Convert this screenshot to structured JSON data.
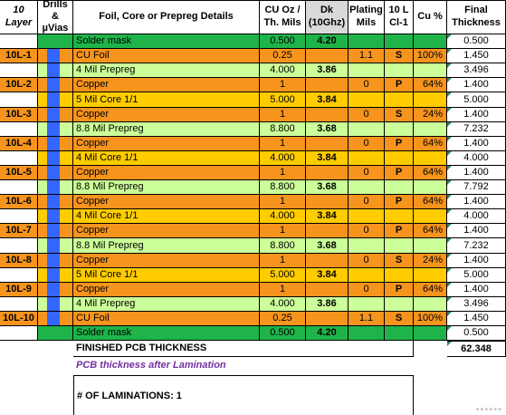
{
  "colors": {
    "solder": "#1fb44a",
    "copper": "#f7941d",
    "prepreg": "#ccff99",
    "core": "#ffcc00",
    "via": "#3366ff",
    "header": "#d9d9d9"
  },
  "headers": {
    "layer": "10 Layer",
    "drills": "Drills & µVias",
    "details": "Foil, Core or Prepreg Details",
    "cu": "CU Oz / Th. Mils",
    "dk_top": "Dk",
    "dk_bottom": "(10Ghz)",
    "plating": "Plating Mils",
    "cl": "10 L Cl-1",
    "cu_pct": "Cu %",
    "final": "Final Thickness"
  },
  "rows": [
    {
      "layer": "",
      "type": "solder",
      "detail": "Solder mask",
      "cu": "0.500",
      "dk": "4.20",
      "plating": "",
      "cl": "",
      "pct": "",
      "final": "0.500"
    },
    {
      "layer": "10L-1",
      "type": "copper",
      "detail": "CU Foil",
      "cu": "0.25",
      "dk": "",
      "plating": "1.1",
      "cl": "S",
      "pct": "100%",
      "final": "1.450"
    },
    {
      "layer": "",
      "type": "prepreg",
      "detail": "4 Mil Prepreg",
      "cu": "4.000",
      "dk": "3.86",
      "plating": "",
      "cl": "",
      "pct": "",
      "final": "3.496"
    },
    {
      "layer": "10L-2",
      "type": "copper",
      "detail": "Copper",
      "cu": "1",
      "dk": "",
      "plating": "0",
      "cl": "P",
      "pct": "64%",
      "final": "1.400"
    },
    {
      "layer": "",
      "type": "core",
      "detail": "5 Mil Core 1/1",
      "cu": "5.000",
      "dk": "3.84",
      "plating": "",
      "cl": "",
      "pct": "",
      "final": "5.000"
    },
    {
      "layer": "10L-3",
      "type": "copper",
      "detail": "Copper",
      "cu": "1",
      "dk": "",
      "plating": "0",
      "cl": "S",
      "pct": "24%",
      "final": "1.400"
    },
    {
      "layer": "",
      "type": "prepreg",
      "detail": "8.8 Mil Prepreg",
      "cu": "8.800",
      "dk": "3.68",
      "plating": "",
      "cl": "",
      "pct": "",
      "final": "7.232"
    },
    {
      "layer": "10L-4",
      "type": "copper",
      "detail": "Copper",
      "cu": "1",
      "dk": "",
      "plating": "0",
      "cl": "P",
      "pct": "64%",
      "final": "1.400"
    },
    {
      "layer": "",
      "type": "core",
      "detail": "4 Mil Core 1/1",
      "cu": "4.000",
      "dk": "3.84",
      "plating": "",
      "cl": "",
      "pct": "",
      "final": "4.000"
    },
    {
      "layer": "10L-5",
      "type": "copper",
      "detail": "Copper",
      "cu": "1",
      "dk": "",
      "plating": "0",
      "cl": "P",
      "pct": "64%",
      "final": "1.400"
    },
    {
      "layer": "",
      "type": "prepreg",
      "detail": "8.8 Mil Prepreg",
      "cu": "8.800",
      "dk": "3.68",
      "plating": "",
      "cl": "",
      "pct": "",
      "final": "7.792"
    },
    {
      "layer": "10L-6",
      "type": "copper",
      "detail": "Copper",
      "cu": "1",
      "dk": "",
      "plating": "0",
      "cl": "P",
      "pct": "64%",
      "final": "1.400"
    },
    {
      "layer": "",
      "type": "core",
      "detail": "4 Mil Core 1/1",
      "cu": "4.000",
      "dk": "3.84",
      "plating": "",
      "cl": "",
      "pct": "",
      "final": "4.000"
    },
    {
      "layer": "10L-7",
      "type": "copper",
      "detail": "Copper",
      "cu": "1",
      "dk": "",
      "plating": "0",
      "cl": "P",
      "pct": "64%",
      "final": "1.400"
    },
    {
      "layer": "",
      "type": "prepreg",
      "detail": "8.8 Mil Prepreg",
      "cu": "8.800",
      "dk": "3.68",
      "plating": "",
      "cl": "",
      "pct": "",
      "final": "7.232"
    },
    {
      "layer": "10L-8",
      "type": "copper",
      "detail": "Copper",
      "cu": "1",
      "dk": "",
      "plating": "0",
      "cl": "S",
      "pct": "24%",
      "final": "1.400"
    },
    {
      "layer": "",
      "type": "core",
      "detail": "5 Mil Core 1/1",
      "cu": "5.000",
      "dk": "3.84",
      "plating": "",
      "cl": "",
      "pct": "",
      "final": "5.000"
    },
    {
      "layer": "10L-9",
      "type": "copper",
      "detail": "Copper",
      "cu": "1",
      "dk": "",
      "plating": "0",
      "cl": "P",
      "pct": "64%",
      "final": "1.400"
    },
    {
      "layer": "",
      "type": "prepreg",
      "detail": "4 Mil Prepreg",
      "cu": "4.000",
      "dk": "3.86",
      "plating": "",
      "cl": "",
      "pct": "",
      "final": "3.496"
    },
    {
      "layer": "10L-10",
      "type": "copper",
      "detail": "CU Foil",
      "cu": "0.25",
      "dk": "",
      "plating": "1.1",
      "cl": "S",
      "pct": "100%",
      "final": "1.450"
    },
    {
      "layer": "",
      "type": "solder",
      "detail": "Solder mask",
      "cu": "0.500",
      "dk": "4.20",
      "plating": "",
      "cl": "",
      "pct": "",
      "final": "0.500"
    }
  ],
  "summary": {
    "finished_label": "FINISHED PCB  THICKNESS",
    "finished_value": "62.348",
    "after_lamination": "PCB thickness after Lamination",
    "laminations": "# OF LAMINATIONS: 1"
  },
  "watermark": "▪▪▪▪▪▪"
}
